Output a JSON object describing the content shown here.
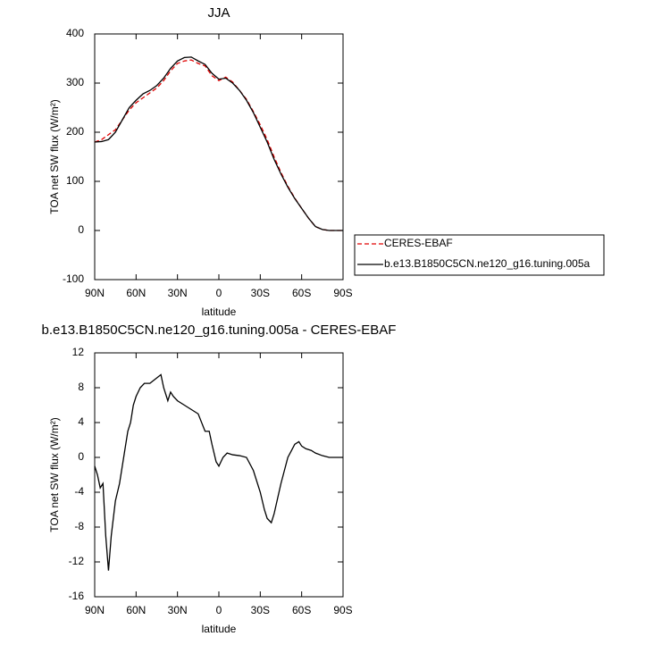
{
  "chart_data": [
    {
      "type": "line",
      "title": "JJA",
      "xlabel": "latitude",
      "ylabel": "TOA net SW flux (W/m²)",
      "x": [
        90,
        85,
        80,
        75,
        70,
        65,
        60,
        55,
        50,
        45,
        40,
        35,
        30,
        25,
        20,
        15,
        10,
        5,
        0,
        -5,
        -10,
        -15,
        -20,
        -25,
        -30,
        -35,
        -40,
        -45,
        -50,
        -55,
        -60,
        -65,
        -70,
        -75,
        -80,
        -85,
        -90
      ],
      "series": [
        {
          "name": "CERES-EBAF",
          "color": "#e00000",
          "line_style": "dashed",
          "values": [
            180,
            185,
            195,
            205,
            225,
            245,
            260,
            270,
            280,
            290,
            305,
            325,
            340,
            345,
            347,
            340,
            335,
            315,
            305,
            312,
            302,
            285,
            267,
            242,
            215,
            185,
            150,
            118,
            90,
            66,
            45,
            25,
            8,
            2,
            0,
            0,
            0
          ]
        },
        {
          "name": "b.e13.B1850C5CN.ne120_g16.tuning.005a",
          "color": "#000000",
          "line_style": "solid",
          "values": [
            180,
            181,
            185,
            200,
            225,
            250,
            265,
            278,
            285,
            295,
            310,
            330,
            345,
            352,
            353,
            345,
            338,
            320,
            308,
            310,
            300,
            285,
            265,
            240,
            210,
            180,
            145,
            115,
            88,
            65,
            45,
            25,
            8,
            2,
            0,
            0,
            0
          ]
        }
      ],
      "xlim": [
        90,
        -90
      ],
      "xticks": [
        {
          "value": 90,
          "label": "90N"
        },
        {
          "value": 60,
          "label": "60N"
        },
        {
          "value": 30,
          "label": "30N"
        },
        0,
        {
          "value": -30,
          "label": "30S"
        },
        {
          "value": -60,
          "label": "60S"
        },
        {
          "value": -90,
          "label": "90S"
        }
      ],
      "ylim": [
        -100,
        400
      ],
      "yticks": [
        -100,
        0,
        100,
        200,
        300,
        400
      ],
      "legend": "right"
    },
    {
      "type": "line",
      "title": "b.e13.B1850C5CN.ne120_g16.tuning.005a - CERES-EBAF",
      "xlabel": "latitude",
      "ylabel": "TOA net SW flux (W/m²)",
      "x": [
        90,
        88,
        86,
        84,
        82,
        80,
        78,
        75,
        72,
        70,
        68,
        66,
        64,
        62,
        60,
        57,
        54,
        50,
        46,
        42,
        40,
        37,
        35,
        33,
        30,
        25,
        20,
        15,
        10,
        7,
        5,
        2,
        0,
        -3,
        -6,
        -10,
        -15,
        -20,
        -25,
        -30,
        -33,
        -35,
        -38,
        -40,
        -45,
        -50,
        -55,
        -58,
        -60,
        -63,
        -67,
        -70,
        -75,
        -80,
        -90
      ],
      "series": [
        {
          "color": "#000000",
          "line_style": "solid",
          "values": [
            -1,
            -2,
            -3.5,
            -3,
            -9,
            -13,
            -9,
            -5,
            -3,
            -1,
            1,
            3,
            4,
            6,
            7,
            8,
            8.5,
            8.5,
            9,
            9.5,
            8,
            6.5,
            7.5,
            7,
            6.5,
            6,
            5.5,
            5,
            3,
            3,
            1.5,
            -0.5,
            -1,
            0,
            0.5,
            0.3,
            0.2,
            0,
            -1.5,
            -4,
            -6,
            -7,
            -7.5,
            -6.5,
            -3,
            0,
            1.5,
            1.8,
            1.3,
            1,
            0.8,
            0.5,
            0.2,
            0,
            0
          ]
        }
      ],
      "xlim": [
        90,
        -90
      ],
      "xticks": [
        {
          "value": 90,
          "label": "90N"
        },
        {
          "value": 60,
          "label": "60N"
        },
        {
          "value": 30,
          "label": "30N"
        },
        0,
        {
          "value": -30,
          "label": "30S"
        },
        {
          "value": -60,
          "label": "60S"
        },
        {
          "value": -90,
          "label": "90S"
        }
      ],
      "ylim": [
        -16,
        12
      ],
      "yticks": [
        -16,
        -12,
        -8,
        -4,
        0,
        4,
        8,
        12
      ]
    }
  ]
}
